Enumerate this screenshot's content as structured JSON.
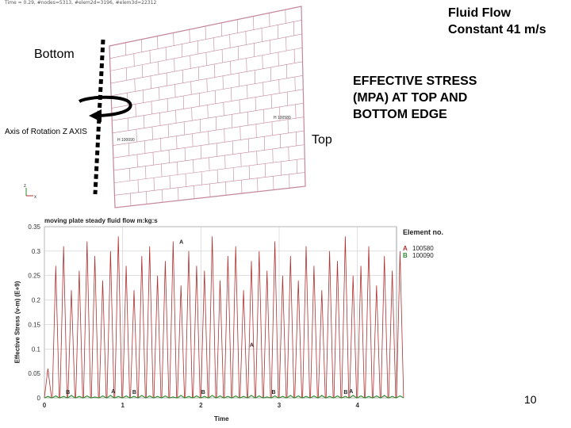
{
  "slide": {
    "flow_line1": "Fluid Flow",
    "flow_line2": "Constant 41 m/s",
    "bottom_label": "Bottom",
    "stress_line1": "EFFECTIVE STRESS",
    "stress_line2": "(MPA) AT TOP AND",
    "stress_line3": "BOTTOM EDGE",
    "axis_label": "Axis of Rotation Z AXIS",
    "top_label": "Top",
    "page_number": "10"
  },
  "mesh": {
    "caption": "Time =      0.29, #nodes=5313, #elem2d=3196, #elem3d=22312",
    "node_label_upper": "H 100580",
    "node_label_lower": "H 100090",
    "triad_z": "z",
    "triad_x": "x",
    "line_color": "#c4879b",
    "arrow_color": "#000000"
  },
  "chart_data": {
    "type": "line",
    "title": "moving plate steady fluid flow m:kg:s",
    "xlabel": "Time",
    "ylabel": "Effective Stress (v-m) (E+9)",
    "xlim": [
      0,
      4.5
    ],
    "ylim": [
      0,
      0.35
    ],
    "xticks": [
      "0",
      "1",
      "2",
      "3",
      "4"
    ],
    "yticks": [
      "0",
      "0.05",
      "0.1",
      "0.15",
      "0.2",
      "0.25",
      "0.3",
      "0.35"
    ],
    "legend_title": "Element no.",
    "legend_position": "right",
    "grid": true,
    "series": [
      {
        "name": "100580",
        "marker": "A",
        "color": "#b03030",
        "period": 0.1,
        "peaks": [
          0.06,
          0.27,
          0.31,
          0.22,
          0.26,
          0.32,
          0.29,
          0.24,
          0.3,
          0.33,
          0.27,
          0.22,
          0.29,
          0.31,
          0.25,
          0.28,
          0.32,
          0.23,
          0.3,
          0.27,
          0.26,
          0.33,
          0.24,
          0.29,
          0.31,
          0.22,
          0.28,
          0.3,
          0.26,
          0.32,
          0.25,
          0.29,
          0.24,
          0.31,
          0.27,
          0.22,
          0.3,
          0.28,
          0.33,
          0.25,
          0.27,
          0.31,
          0.23,
          0.29,
          0.26,
          0.3
        ]
      },
      {
        "name": "100090",
        "marker": "B",
        "color": "#2a8a2a",
        "period": 0.1,
        "peaks": [
          0.003,
          0.004,
          0.003,
          0.005,
          0.003,
          0.004,
          0.002,
          0.004,
          0.005,
          0.003,
          0.004,
          0.003,
          0.005,
          0.004,
          0.003,
          0.004,
          0.002,
          0.005,
          0.003,
          0.004,
          0.003,
          0.005,
          0.004,
          0.003,
          0.004,
          0.003,
          0.005,
          0.004,
          0.002,
          0.004,
          0.003,
          0.005,
          0.004,
          0.003,
          0.004,
          0.005,
          0.003,
          0.004,
          0.003,
          0.005,
          0.004,
          0.003,
          0.004,
          0.005,
          0.003,
          0.004
        ]
      }
    ],
    "markers": [
      {
        "label": "A",
        "x": 1.75,
        "y": 0.31
      },
      {
        "label": "A",
        "x": 2.65,
        "y": 0.1
      },
      {
        "label": "A",
        "x": 0.88,
        "y": 0.005
      },
      {
        "label": "A",
        "x": 3.92,
        "y": 0.005
      },
      {
        "label": "B",
        "x": 0.3,
        "y": 0.003
      },
      {
        "label": "B",
        "x": 1.15,
        "y": 0.003
      },
      {
        "label": "B",
        "x": 2.03,
        "y": 0.003
      },
      {
        "label": "B",
        "x": 2.93,
        "y": 0.003
      },
      {
        "label": "B",
        "x": 3.85,
        "y": 0.003
      }
    ]
  }
}
